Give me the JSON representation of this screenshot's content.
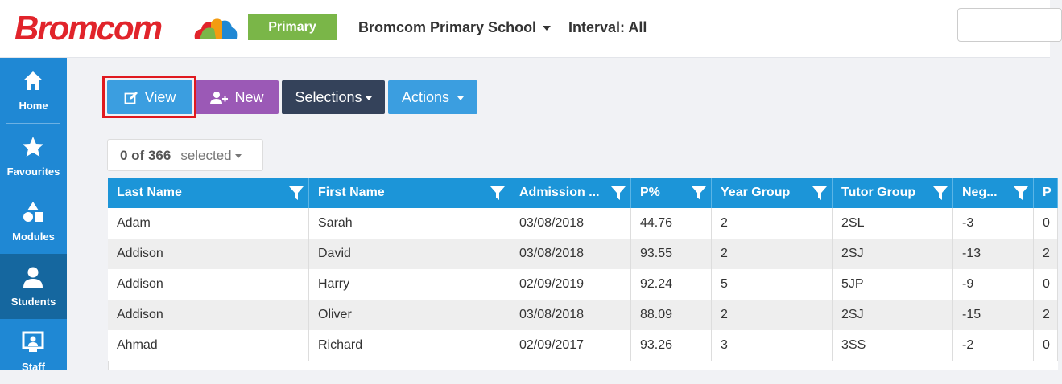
{
  "header": {
    "logo_text": "Bromcom",
    "badge": "Primary",
    "school": "Bromcom Primary School",
    "interval": "Interval: All",
    "search_value": ""
  },
  "sidebar": {
    "items": [
      {
        "label": "Home",
        "icon": "home-icon"
      },
      {
        "label": "Favourites",
        "icon": "star-icon"
      },
      {
        "label": "Modules",
        "icon": "shapes-icon"
      },
      {
        "label": "Students",
        "icon": "user-icon",
        "active": true
      },
      {
        "label": "Staff",
        "icon": "staff-icon"
      }
    ]
  },
  "toolbar": {
    "view_label": "View",
    "new_label": "New",
    "selections_label": "Selections",
    "actions_label": "Actions"
  },
  "selection": {
    "count": "0 of 366",
    "label": "selected"
  },
  "grid": {
    "columns": [
      "Last Name",
      "First Name",
      "Admission ...",
      "P%",
      "Year Group",
      "Tutor Group",
      "Neg...",
      "P"
    ],
    "rows": [
      [
        "Adam",
        "Sarah",
        "03/08/2018",
        "44.76",
        "2",
        "2SL",
        "-3",
        "0"
      ],
      [
        "Addison",
        "David",
        "03/08/2018",
        "93.55",
        "2",
        "2SJ",
        "-13",
        "2"
      ],
      [
        "Addison",
        "Harry",
        "02/09/2019",
        "92.24",
        "5",
        "5JP",
        "-9",
        "0"
      ],
      [
        "Addison",
        "Oliver",
        "03/08/2018",
        "88.09",
        "2",
        "2SJ",
        "-15",
        "2"
      ],
      [
        "Ahmad",
        "Richard",
        "02/09/2017",
        "93.26",
        "3",
        "3SS",
        "-2",
        "0"
      ]
    ]
  },
  "colors": {
    "brand_red": "#e1242b",
    "primary_green": "#7ab648",
    "sidebar_blue": "#1f88d4",
    "header_blue": "#1c95d8",
    "new_purple": "#9b59b6",
    "selections_navy": "#34425a",
    "highlight_red": "#e0191f"
  }
}
